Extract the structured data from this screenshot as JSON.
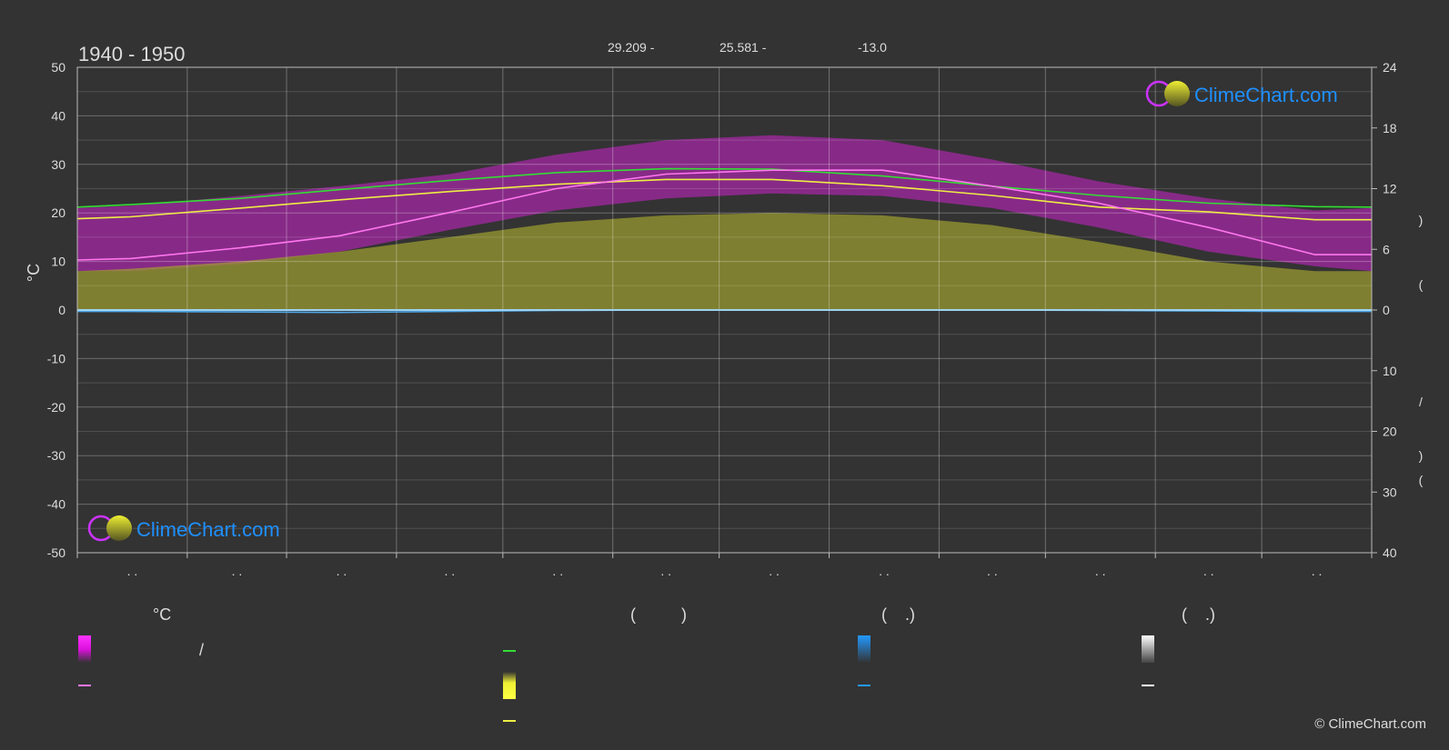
{
  "chart_data": {
    "type": "area",
    "period": "1940 - 1950",
    "left_axis_title": "°C",
    "stats_top": [
      "29.209 -",
      "25.581 -",
      "-13.0"
    ],
    "left_ticks": [
      "50",
      "40",
      "30",
      "20",
      "10",
      "0",
      "-10",
      "-20",
      "-30",
      "-40",
      "-50"
    ],
    "right_ticks_top": [
      "24",
      "18",
      "12",
      "6",
      "0"
    ],
    "right_ticks_bottom": [
      "10",
      "20",
      "30",
      "40"
    ],
    "right_axis_glyphs": [
      ")",
      "(",
      "/",
      ")",
      "("
    ],
    "month_ticks": [
      ". .",
      ". .",
      ". .",
      ". .",
      ". .",
      ". .",
      ". .",
      ". .",
      ". .",
      ". .",
      ". .",
      ". ."
    ],
    "ylim_left": [
      -50,
      50
    ],
    "ylim_right_top": [
      0,
      24
    ],
    "ylim_right_bottom": [
      0,
      40
    ],
    "x_days": [
      0,
      15,
      46,
      74,
      105,
      135,
      166,
      196,
      227,
      258,
      288,
      319,
      349,
      365
    ],
    "series": [
      {
        "values": [
          21.2,
          21.7,
          23.0,
          24.8,
          26.7,
          28.3,
          29.1,
          29.0,
          27.6,
          25.5,
          23.6,
          22.0,
          21.3,
          21.2
        ],
        "color": "#33dd33"
      },
      {
        "values": [
          18.8,
          19.2,
          21.0,
          22.7,
          24.4,
          25.9,
          26.9,
          26.9,
          25.6,
          23.6,
          21.2,
          20.2,
          18.6,
          18.6
        ],
        "color": "#eeee44"
      },
      {
        "values": [
          10.3,
          10.6,
          12.8,
          15.3,
          20.1,
          25.0,
          28.0,
          28.8,
          28.8,
          25.5,
          22.0,
          17.0,
          11.4,
          11.4
        ],
        "color": "#ff77ee"
      },
      {
        "values": [
          -0.3,
          -0.3,
          -0.4,
          -0.5,
          -0.3,
          -0.1,
          0,
          0,
          0,
          0,
          -0.1,
          -0.2,
          -0.3,
          -0.3
        ],
        "color": "#4fa8e8"
      }
    ],
    "bands": [
      {
        "high": [
          21.0,
          21.5,
          23.5,
          25.5,
          28.0,
          32.0,
          35.0,
          36.0,
          35.0,
          31.0,
          26.5,
          23.0,
          20.5,
          21.0
        ],
        "low": [
          8.0,
          8.0,
          9.5,
          12.0,
          16.5,
          20.5,
          23.0,
          24.0,
          23.5,
          21.0,
          17.0,
          12.0,
          9.0,
          8.0
        ],
        "color": "#cc22cc"
      },
      {
        "high": [
          8.0,
          8.5,
          10.0,
          12.0,
          15.0,
          18.0,
          19.5,
          20.0,
          19.5,
          17.5,
          14.0,
          10.0,
          8.0,
          8.0
        ],
        "low": [
          0,
          0,
          0,
          0,
          0,
          0,
          0,
          0,
          0,
          0,
          0,
          0,
          0,
          0
        ],
        "color": "#a0a030"
      }
    ],
    "legend": {
      "col1": {
        "header": "°C",
        "item1": "/"
      },
      "col2": {
        "header": "(          )"
      },
      "col3": {
        "header": "(    .)"
      },
      "col4": {
        "header": "(    .)"
      }
    },
    "logo_text": "ClimeChart.com",
    "copyright": "© ClimeChart.com"
  }
}
